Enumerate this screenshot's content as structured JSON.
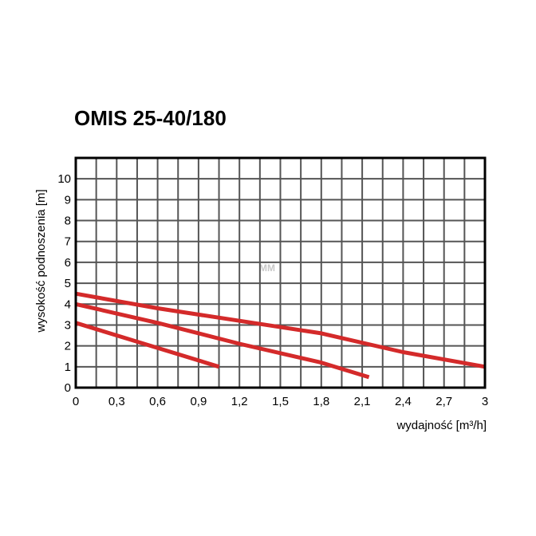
{
  "chart_data": {
    "type": "line",
    "title": "OMIS 25-40/180",
    "xlabel": "wydajność [m³/h]",
    "ylabel": "wysokość podnoszenia [m]",
    "xlim": [
      0,
      3
    ],
    "ylim": [
      0,
      11
    ],
    "x_ticks": [
      "0",
      "0,3",
      "0,6",
      "0,9",
      "1,2",
      "1,5",
      "1,8",
      "2,1",
      "2,4",
      "2,7",
      "3"
    ],
    "y_ticks": [
      "0",
      "1",
      "2",
      "3",
      "4",
      "5",
      "6",
      "7",
      "8",
      "9",
      "10"
    ],
    "grid": true,
    "series_color": "#d42a2a",
    "series": [
      {
        "points": [
          [
            0,
            4.5
          ],
          [
            0.6,
            3.8
          ],
          [
            1.2,
            3.2
          ],
          [
            1.8,
            2.6
          ],
          [
            2.4,
            1.7
          ],
          [
            3.0,
            1.0
          ]
        ]
      },
      {
        "points": [
          [
            0,
            4.0
          ],
          [
            0.6,
            3.1
          ],
          [
            1.2,
            2.1
          ],
          [
            1.8,
            1.2
          ],
          [
            2.15,
            0.5
          ]
        ]
      },
      {
        "points": [
          [
            0,
            3.1
          ],
          [
            0.5,
            2.1
          ],
          [
            1.05,
            1.0
          ]
        ]
      }
    ]
  },
  "watermark": "MM"
}
